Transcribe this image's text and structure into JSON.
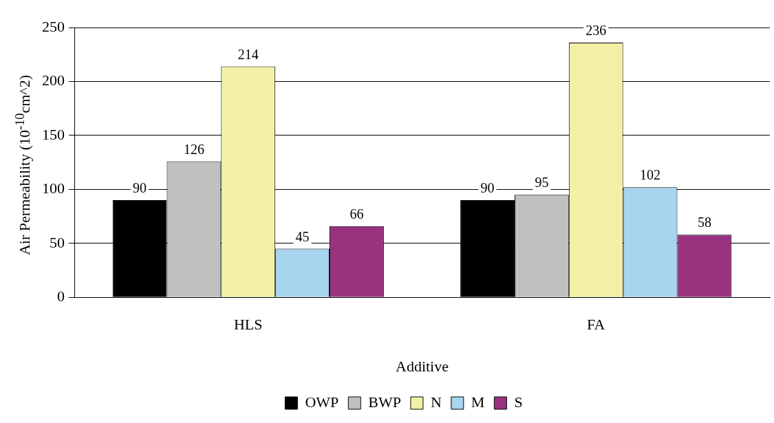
{
  "chart_data": {
    "type": "bar",
    "xlabel": "Additive",
    "ylabel": "Air Permeability (10$^{-10}$cm^2)",
    "categories": [
      "HLS",
      "FA"
    ],
    "series": [
      {
        "name": "OWP",
        "color": "#000000",
        "values": [
          90,
          90
        ]
      },
      {
        "name": "BWP",
        "color": "#c0c0c0",
        "values": [
          126,
          95
        ]
      },
      {
        "name": "N",
        "color": "#f2f0a6",
        "values": [
          214,
          236
        ]
      },
      {
        "name": "M",
        "color": "#a8d4f0",
        "values": [
          45,
          102
        ]
      },
      {
        "name": "S",
        "color": "#993380",
        "values": [
          66,
          58
        ]
      }
    ],
    "ylim": [
      0,
      250
    ],
    "yticks": [
      0,
      50,
      100,
      150,
      200,
      250
    ],
    "grid": "y",
    "legend": "bottom",
    "data_labels": true
  }
}
